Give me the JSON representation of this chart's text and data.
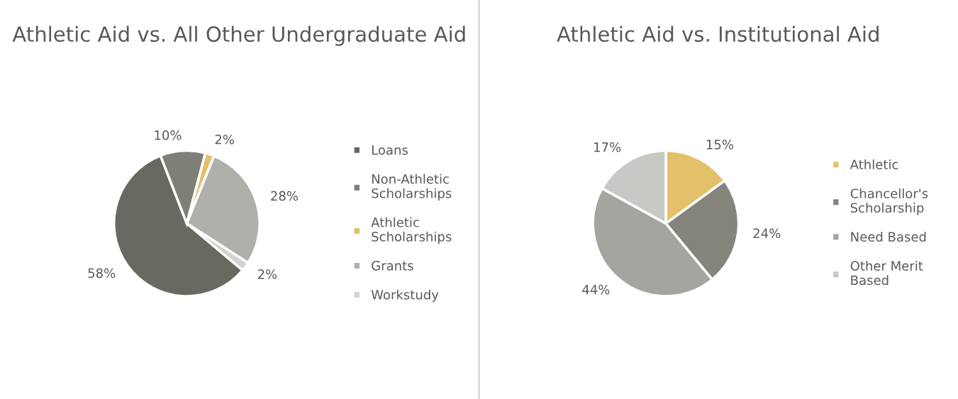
{
  "chart_data": [
    {
      "type": "pie",
      "title": "Athletic Aid vs. All Other Undergraduate Aid",
      "categories": [
        "Loans",
        "Non-Athletic Scholarships",
        "Athletic Scholarships",
        "Grants",
        "Workstudy"
      ],
      "values": [
        58,
        10,
        2,
        28,
        2
      ],
      "value_labels": [
        "58%",
        "10%",
        "2%",
        "28%",
        "2%"
      ],
      "colors": [
        "#696961",
        "#7f7f78",
        "#e4c06b",
        "#b0b0ab",
        "#d2d2cf"
      ],
      "legend": "right"
    },
    {
      "type": "pie",
      "title": "Athletic Aid vs. Institutional Aid",
      "categories": [
        "Athletic",
        "Chancellor's Scholarship",
        "Need Based",
        "Other Merit Based"
      ],
      "values": [
        15,
        24,
        44,
        17
      ],
      "value_labels": [
        "15%",
        "24%",
        "44%",
        "17%"
      ],
      "colors": [
        "#e4c06b",
        "#85857d",
        "#a5a5a0",
        "#c8c8c5"
      ],
      "legend": "right"
    }
  ]
}
